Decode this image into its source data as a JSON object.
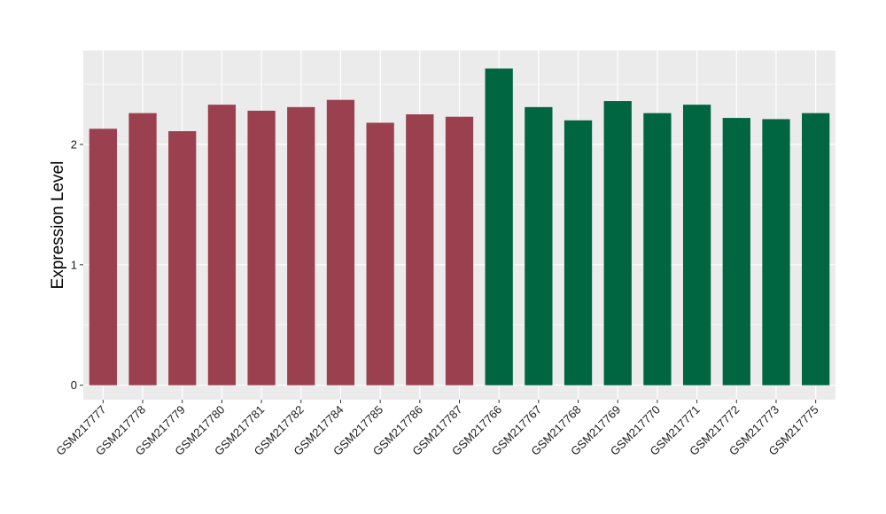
{
  "chart_data": {
    "type": "bar",
    "ylabel": "Expression Level",
    "xlabel": "",
    "title": "",
    "ylim": [
      -0.12,
      2.78
    ],
    "y_ticks": [
      0,
      1,
      2
    ],
    "grid": true,
    "legend": "none",
    "categories": [
      "GSM217777",
      "GSM217778",
      "GSM217779",
      "GSM217780",
      "GSM217781",
      "GSM217782",
      "GSM217784",
      "GSM217785",
      "GSM217786",
      "GSM217787",
      "GSM217766",
      "GSM217767",
      "GSM217768",
      "GSM217769",
      "GSM217770",
      "GSM217771",
      "GSM217772",
      "GSM217773",
      "GSM217775"
    ],
    "values": [
      2.13,
      2.26,
      2.11,
      2.33,
      2.28,
      2.31,
      2.37,
      2.18,
      2.25,
      2.23,
      2.63,
      2.31,
      2.2,
      2.36,
      2.26,
      2.33,
      2.22,
      2.21,
      2.26
    ],
    "bar_colors": [
      "#9b404f",
      "#9b404f",
      "#9b404f",
      "#9b404f",
      "#9b404f",
      "#9b404f",
      "#9b404f",
      "#9b404f",
      "#9b404f",
      "#9b404f",
      "#006642",
      "#006642",
      "#006642",
      "#006642",
      "#006642",
      "#006642",
      "#006642",
      "#006642",
      "#006642"
    ],
    "panel_background": "#ebebeb",
    "grid_color": "#ffffff"
  }
}
